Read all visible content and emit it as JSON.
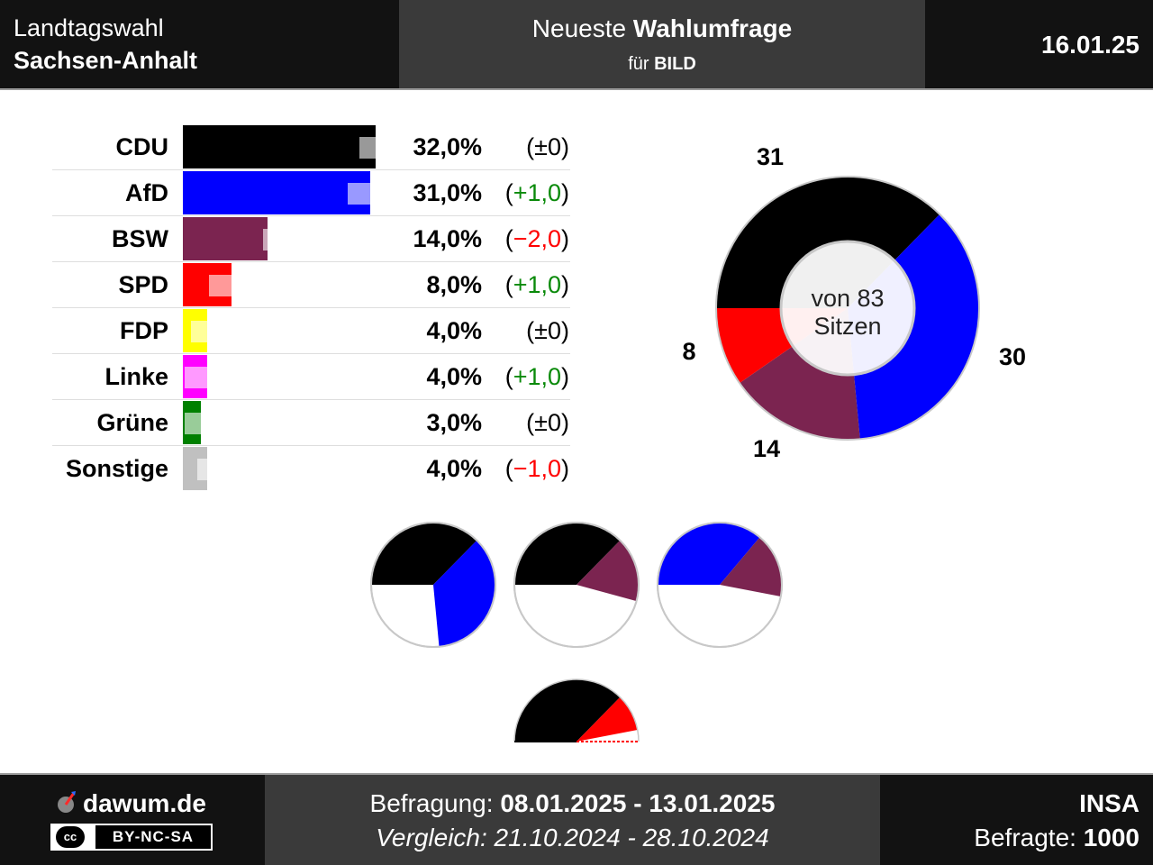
{
  "header": {
    "election_line1": "Landtagswahl",
    "election_line2": "Sachsen-Anhalt",
    "title_prefix": "Neueste ",
    "title_bold": "Wahlumfrage",
    "subtitle_prefix": "für ",
    "subtitle_bold": "BILD",
    "date": "16.01.25"
  },
  "chart_data": [
    {
      "type": "bar",
      "orientation": "horizontal",
      "categories": [
        "CDU",
        "AfD",
        "BSW",
        "SPD",
        "FDP",
        "Linke",
        "Grüne",
        "Sonstige"
      ],
      "values": [
        32.0,
        31.0,
        14.0,
        8.0,
        4.0,
        4.0,
        3.0,
        4.0
      ],
      "previous_values": [
        32.0,
        30.0,
        16.0,
        7.0,
        4.0,
        3.0,
        3.0,
        5.0
      ],
      "value_labels": [
        "32,0%",
        "31,0%",
        "14,0%",
        "8,0%",
        "4,0%",
        "4,0%",
        "3,0%",
        "4,0%"
      ],
      "change_labels": [
        "±0",
        "+1,0",
        "−2,0",
        "+1,0",
        "±0",
        "+1,0",
        "±0",
        "−1,0"
      ],
      "change_sign": [
        "zero",
        "pos",
        "neg",
        "pos",
        "zero",
        "pos",
        "zero",
        "neg"
      ],
      "colors": [
        "#000000",
        "#0000ff",
        "#7b2450",
        "#ff0000",
        "#ffff00",
        "#ff00ff",
        "#008000",
        "#c0c0c0"
      ]
    },
    {
      "type": "pie",
      "style": "donut",
      "categories": [
        "CDU",
        "AfD",
        "BSW",
        "SPD"
      ],
      "values": [
        31,
        30,
        14,
        8
      ],
      "labels": [
        "31",
        "30",
        "14",
        "8"
      ],
      "colors": [
        "#000000",
        "#0000ff",
        "#7b2450",
        "#ff0000"
      ],
      "center_line1": "von 83",
      "center_line2": "Sitzen"
    },
    {
      "type": "pie",
      "style": "coalitions",
      "total_seats": 83,
      "coalitions": [
        {
          "parties": [
            "CDU",
            "AfD"
          ],
          "seats": [
            31,
            30
          ],
          "colors": [
            "#000000",
            "#0000ff"
          ]
        },
        {
          "parties": [
            "CDU",
            "BSW"
          ],
          "seats": [
            31,
            14
          ],
          "colors": [
            "#000000",
            "#7b2450"
          ]
        },
        {
          "parties": [
            "AfD",
            "BSW"
          ],
          "seats": [
            30,
            14
          ],
          "colors": [
            "#0000ff",
            "#7b2450"
          ]
        },
        {
          "parties": [
            "CDU",
            "SPD"
          ],
          "seats": [
            31,
            8
          ],
          "colors": [
            "#000000",
            "#ff0000"
          ]
        }
      ]
    }
  ],
  "footer": {
    "brand": "dawum.de",
    "license": "BY-NC-SA",
    "license_icon": "cc",
    "survey_prefix": "Befragung: ",
    "survey_dates": "08.01.2025 - 13.01.2025",
    "compare_text": "Vergleich: 21.10.2024 - 28.10.2024",
    "institute": "INSA",
    "respondents_prefix": "Befragte: ",
    "respondents": "1000"
  }
}
